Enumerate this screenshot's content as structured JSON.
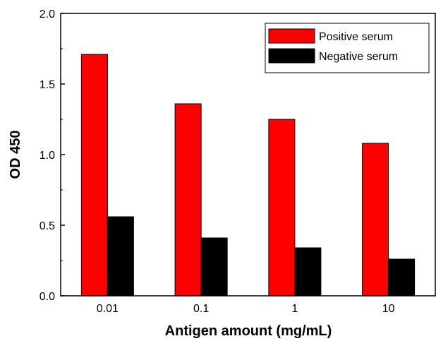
{
  "chart_data": {
    "type": "bar",
    "title": "",
    "xlabel": "Antigen amount (mg/mL)",
    "ylabel": "OD 450",
    "categories": [
      "0.01",
      "0.1",
      "1",
      "10"
    ],
    "series": [
      {
        "name": "Positive serum",
        "color": "#ff0000",
        "values": [
          1.71,
          1.36,
          1.25,
          1.08
        ]
      },
      {
        "name": "Negative serum",
        "color": "#000000",
        "values": [
          0.56,
          0.41,
          0.34,
          0.26
        ]
      }
    ],
    "ylim": [
      0,
      2.0
    ],
    "yticks": [
      "0.0",
      "0.5",
      "1.0",
      "1.5",
      "2.0"
    ],
    "grid": false,
    "legend_position": "top-right"
  }
}
